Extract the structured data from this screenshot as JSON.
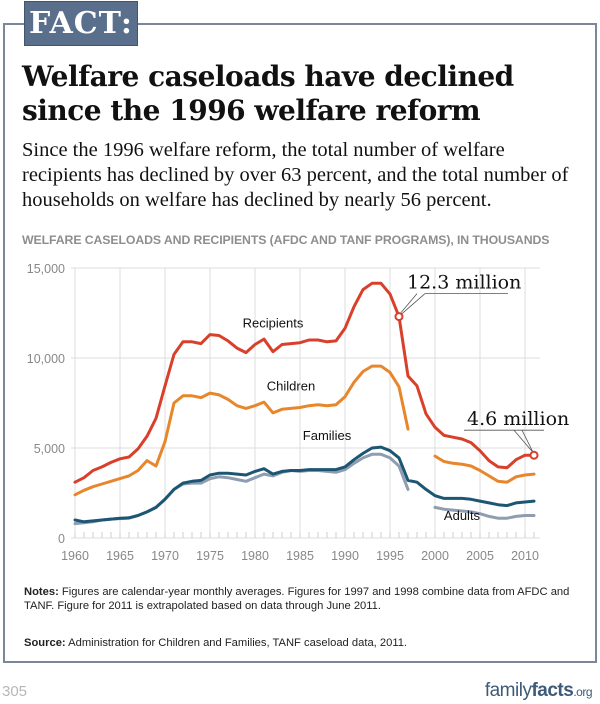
{
  "badge": "FACT:",
  "title": "Welfare caseloads have declined since the 1996 welfare reform",
  "subtitle": "Since the 1996 welfare reform, the total number of welfare recipients has declined by over 63 percent, and the total number of households on welfare has declined by nearly 56 percent.",
  "notes": {
    "label": "Notes:",
    "text": " Figures are calendar-year monthly averages. Figures for 1997 and 1998 combine data from AFDC and TANF. Figure for 2011 is extrapolated based on data through June 2011."
  },
  "source": {
    "label": "Source:",
    "text": " Administration for Children and Families, TANF caseload data, 2011."
  },
  "page_number": "305",
  "logo": {
    "part1": "family",
    "part2": "facts",
    "part3": ".org"
  },
  "chart_data": {
    "type": "line",
    "title": "WELFARE CASELOADS AND RECIPIENTS (AFDC AND TANF PROGRAMS), IN THOUSANDS",
    "xlabel": "",
    "ylabel": "",
    "xlim": [
      1960,
      2011
    ],
    "ylim": [
      0,
      15000
    ],
    "grid": true,
    "x_ticks": [
      1960,
      1965,
      1970,
      1975,
      1980,
      1985,
      1990,
      1995,
      2000,
      2005,
      2010
    ],
    "y_ticks": [
      0,
      5000,
      10000,
      15000
    ],
    "y_tick_labels": [
      "0",
      "5,000",
      "10,000",
      "15,000"
    ],
    "colors": {
      "Recipients": "#d9402b",
      "Children": "#e8862c",
      "Families": "#1d5673",
      "Adults": "#8e9db0"
    },
    "series": [
      {
        "name": "Recipients",
        "label_at": [
          1982,
          11700
        ],
        "segments": [
          {
            "x": [
              1960,
              1961,
              1962,
              1963,
              1964,
              1965,
              1966,
              1967,
              1968,
              1969,
              1970,
              1971,
              1972,
              1973,
              1974,
              1975,
              1976,
              1977,
              1978,
              1979,
              1980,
              1981,
              1982,
              1983,
              1984,
              1985,
              1986,
              1987,
              1988,
              1989,
              1990,
              1991,
              1992,
              1993,
              1994,
              1995,
              1996,
              1997,
              1998,
              1999,
              2000,
              2001,
              2002,
              2003,
              2004,
              2005,
              2006,
              2007,
              2008,
              2009,
              2010,
              2011
            ],
            "y": [
              3100,
              3350,
              3750,
              3950,
              4200,
              4400,
              4500,
              4950,
              5650,
              6650,
              8450,
              10200,
              10900,
              10900,
              10800,
              11300,
              11250,
              10950,
              10550,
              10300,
              10750,
              11050,
              10350,
              10750,
              10800,
              10850,
              11000,
              11000,
              10900,
              10950,
              11650,
              12850,
              13800,
              14150,
              14150,
              13550,
              12300,
              9000,
              8450,
              6900,
              6150,
              5700,
              5600,
              5500,
              5300,
              4850,
              4300,
              3950,
              3900,
              4350,
              4600,
              4600
            ]
          }
        ]
      },
      {
        "name": "Children",
        "label_at": [
          1984,
          8200
        ],
        "segments": [
          {
            "x": [
              1960,
              1961,
              1962,
              1963,
              1964,
              1965,
              1966,
              1967,
              1968,
              1969,
              1970,
              1971,
              1972,
              1973,
              1974,
              1975,
              1976,
              1977,
              1978,
              1979,
              1980,
              1981,
              1982,
              1983,
              1984,
              1985,
              1986,
              1987,
              1988,
              1989,
              1990,
              1991,
              1992,
              1993,
              1994,
              1995,
              1996,
              1997
            ],
            "y": [
              2400,
              2650,
              2850,
              3000,
              3150,
              3300,
              3450,
              3750,
              4300,
              4000,
              5350,
              7500,
              7900,
              7900,
              7800,
              8050,
              7950,
              7700,
              7350,
              7200,
              7350,
              7550,
              6950,
              7150,
              7200,
              7250,
              7350,
              7400,
              7350,
              7400,
              7850,
              8650,
              9250,
              9550,
              9550,
              9200,
              8400,
              6050
            ]
          },
          {
            "x": [
              2000,
              2001,
              2002,
              2003,
              2004,
              2005,
              2006,
              2007,
              2008,
              2009,
              2010,
              2011
            ],
            "y": [
              4550,
              4250,
              4150,
              4100,
              4000,
              3750,
              3450,
              3150,
              3100,
              3400,
              3500,
              3550
            ]
          }
        ]
      },
      {
        "name": "Families",
        "label_at": [
          1988,
          5450
        ],
        "segments": [
          {
            "x": [
              1960,
              1961,
              1962,
              1963,
              1964,
              1965,
              1966,
              1967,
              1968,
              1969,
              1970,
              1971,
              1972,
              1973,
              1974,
              1975,
              1976,
              1977,
              1978,
              1979,
              1980,
              1981,
              1982,
              1983,
              1984,
              1985,
              1986,
              1987,
              1988,
              1989,
              1990,
              1991,
              1992,
              1993,
              1994,
              1995,
              1996,
              1997,
              1998,
              1999,
              2000,
              2001,
              2002,
              2003,
              2004,
              2005,
              2006,
              2007,
              2008,
              2009,
              2010,
              2011
            ],
            "y": [
              1000,
              900,
              950,
              1000,
              1050,
              1100,
              1120,
              1250,
              1450,
              1700,
              2150,
              2700,
              3050,
              3150,
              3200,
              3500,
              3600,
              3600,
              3550,
              3500,
              3700,
              3850,
              3550,
              3700,
              3750,
              3750,
              3800,
              3800,
              3800,
              3800,
              3950,
              4350,
              4700,
              5000,
              5050,
              4850,
              4450,
              3200,
              3100,
              2700,
              2350,
              2200,
              2200,
              2200,
              2150,
              2050,
              1950,
              1850,
              1800,
              1950,
              2000,
              2050
            ]
          }
        ]
      },
      {
        "name": "Adults",
        "label_at": [
          2003,
          1000
        ],
        "segments": [
          {
            "x": [
              1960,
              1961,
              1962,
              1963,
              1964,
              1965,
              1966,
              1967,
              1968,
              1969,
              1970,
              1971,
              1972,
              1973,
              1974,
              1975,
              1976,
              1977,
              1978,
              1979,
              1980,
              1981,
              1982,
              1983,
              1984,
              1985,
              1986,
              1987,
              1988,
              1989,
              1990,
              1991,
              1992,
              1993,
              1994,
              1995,
              1996,
              1997
            ],
            "y": [
              800,
              850,
              900,
              1000,
              1050,
              1080,
              1100,
              1250,
              1450,
              1700,
              2150,
              2700,
              3000,
              3050,
              3050,
              3300,
              3400,
              3350,
              3250,
              3150,
              3350,
              3550,
              3450,
              3650,
              3750,
              3700,
              3750,
              3750,
              3700,
              3650,
              3800,
              4150,
              4450,
              4650,
              4650,
              4450,
              4000,
              2700
            ]
          },
          {
            "x": [
              2000,
              2001,
              2002,
              2003,
              2004,
              2005,
              2006,
              2007,
              2008,
              2009,
              2010,
              2011
            ],
            "y": [
              1700,
              1600,
              1550,
              1500,
              1450,
              1350,
              1200,
              1100,
              1100,
              1200,
              1250,
              1250
            ]
          }
        ]
      }
    ],
    "annotations": [
      {
        "text": "12.3 million",
        "x": 1996,
        "y": 12300,
        "series": "Recipients"
      },
      {
        "text": "4.6 million",
        "x": 2011,
        "y": 4600,
        "series": "Recipients"
      }
    ]
  }
}
